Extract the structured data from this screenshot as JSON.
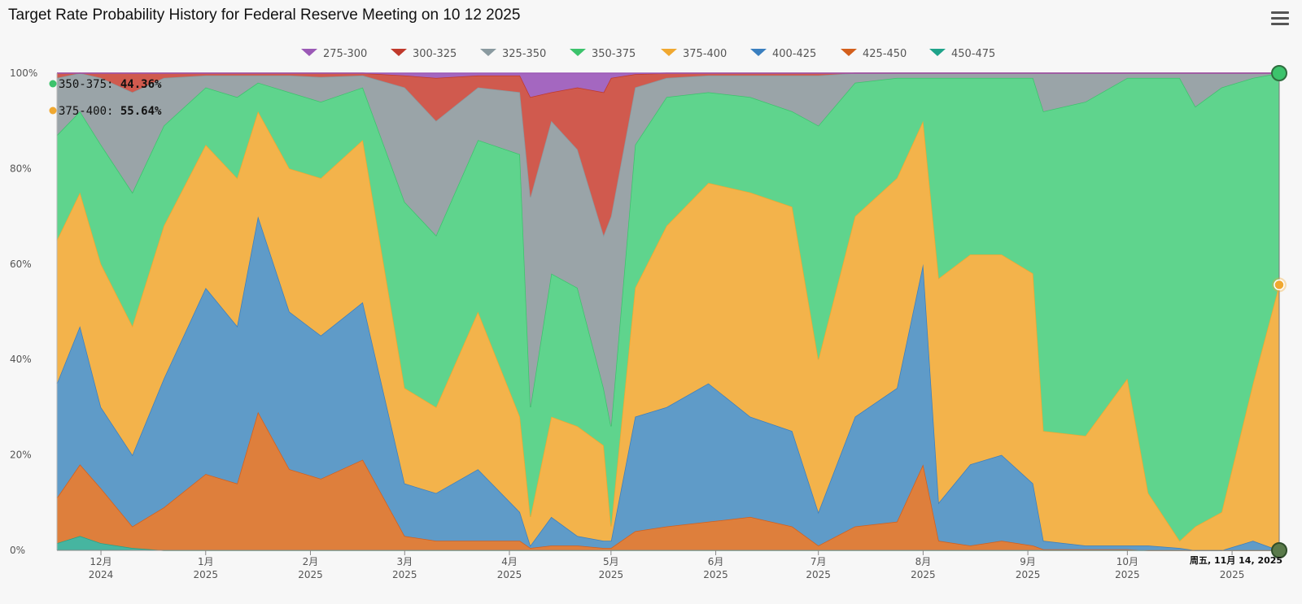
{
  "page": {
    "title": "Target Rate Probability History for Federal Reserve Meeting on 10 12 2025",
    "menu_icon": "hamburger-menu-icon"
  },
  "chart_data": {
    "type": "area",
    "stacked": true,
    "title": "Target Rate Probability History for Federal Reserve Meeting on 10 12 2025",
    "ylim": [
      0,
      100
    ],
    "y_ticks": [
      "0%",
      "20%",
      "40%",
      "60%",
      "80%",
      "100%"
    ],
    "x_ticks": [
      {
        "label": "12月",
        "year": "2024",
        "t": 1.0
      },
      {
        "label": "1月",
        "year": "2025",
        "t": 2.0
      },
      {
        "label": "2月",
        "year": "2025",
        "t": 3.0
      },
      {
        "label": "3月",
        "year": "2025",
        "t": 3.9
      },
      {
        "label": "4月",
        "year": "2025",
        "t": 4.9
      },
      {
        "label": "5月",
        "year": "2025",
        "t": 5.87
      },
      {
        "label": "6月",
        "year": "2025",
        "t": 6.87
      },
      {
        "label": "7月",
        "year": "2025",
        "t": 7.85
      },
      {
        "label": "8月",
        "year": "2025",
        "t": 8.85
      },
      {
        "label": "9月",
        "year": "2025",
        "t": 9.85
      },
      {
        "label": "10月",
        "year": "2025",
        "t": 10.8
      },
      {
        "label": "",
        "year": "2025",
        "t": 11.8
      }
    ],
    "x_range": [
      0.58,
      12.25
    ],
    "last_date_label": "周五, 11月 14, 2025",
    "tooltip": [
      {
        "name": "350-375",
        "value": "44.36%",
        "color": "#3cc36c"
      },
      {
        "name": "375-400",
        "value": "55.64%",
        "color": "#f0a830"
      }
    ],
    "series": [
      {
        "name": "275-300",
        "color": "#9b59b6",
        "fill": "#a467c0"
      },
      {
        "name": "300-325",
        "color": "#c0392b",
        "fill": "#d05a4e"
      },
      {
        "name": "325-350",
        "color": "#8a9aa0",
        "fill": "#9aa4a8"
      },
      {
        "name": "350-375",
        "color": "#3cc36c",
        "fill": "#5fd48d"
      },
      {
        "name": "375-400",
        "color": "#f0a830",
        "fill": "#f3b34b"
      },
      {
        "name": "400-425",
        "color": "#3a7fbf",
        "fill": "#5f9bc8"
      },
      {
        "name": "425-450",
        "color": "#d35f1c",
        "fill": "#de7f3c"
      },
      {
        "name": "450-475",
        "color": "#1fa38a",
        "fill": "#46b5a0"
      }
    ],
    "x": [
      0.58,
      0.8,
      1.0,
      1.3,
      1.6,
      2.0,
      2.3,
      2.5,
      2.8,
      3.1,
      3.5,
      3.9,
      4.2,
      4.6,
      5.0,
      5.1,
      5.3,
      5.55,
      5.8,
      5.87,
      6.1,
      6.4,
      6.8,
      7.2,
      7.6,
      7.85,
      8.2,
      8.6,
      8.85,
      9.0,
      9.3,
      9.6,
      9.9,
      10.0,
      10.4,
      10.8,
      11.0,
      11.3,
      11.45,
      11.7,
      12.0,
      12.25
    ],
    "cumulative_boundaries": {
      "450-475_top": [
        1.5,
        3,
        1.5,
        0.5,
        0,
        0,
        0,
        0,
        0,
        0,
        0,
        0,
        0,
        0,
        0,
        0,
        0,
        0,
        0,
        0,
        0,
        0,
        0,
        0,
        0,
        0,
        0,
        0,
        0,
        0,
        0,
        0,
        0,
        0,
        0,
        0,
        0,
        0,
        0,
        0,
        0,
        0
      ],
      "425-450_top": [
        11,
        18,
        13,
        5,
        9,
        16,
        14,
        29,
        17,
        15,
        19,
        3,
        2,
        2,
        2,
        0.5,
        1,
        1,
        0.5,
        0.5,
        4,
        5,
        6,
        7,
        5,
        1,
        5,
        6,
        18,
        2,
        1,
        2,
        1,
        0.2,
        0.2,
        0.2,
        0,
        0,
        0,
        0,
        0,
        0
      ],
      "400-425_top": [
        35,
        47,
        30,
        20,
        36,
        55,
        47,
        70,
        50,
        45,
        52,
        14,
        12,
        17,
        8,
        1,
        7,
        3,
        2,
        2,
        28,
        30,
        35,
        28,
        25,
        8,
        28,
        34,
        60,
        10,
        18,
        20,
        14,
        2,
        1,
        1,
        1,
        0.5,
        0,
        0,
        2,
        0
      ],
      "375-400_top": [
        65,
        75,
        60,
        47,
        68,
        85,
        78,
        92,
        80,
        78,
        86,
        34,
        30,
        50,
        28,
        7,
        28,
        26,
        22,
        5,
        55,
        68,
        77,
        75,
        72,
        40,
        70,
        78,
        90,
        57,
        62,
        62,
        58,
        25,
        24,
        36,
        12,
        2,
        5,
        8,
        35,
        55.64
      ],
      "350-375_top": [
        87,
        92,
        85,
        75,
        89,
        97,
        95,
        98,
        96,
        94,
        97,
        73,
        66,
        86,
        83,
        30,
        58,
        55,
        34,
        26,
        85,
        95,
        96,
        95,
        92,
        89,
        98,
        99,
        99,
        99,
        99,
        99,
        99,
        92,
        94,
        99,
        99,
        99,
        93,
        97,
        99,
        100
      ],
      "325-350_top": [
        99,
        100,
        99,
        96,
        99,
        99.5,
        99.5,
        99.5,
        99.5,
        99.2,
        99.5,
        97,
        90,
        97,
        96,
        74,
        90,
        84,
        66,
        70,
        97,
        99,
        99.5,
        99.5,
        99.5,
        99.5,
        100,
        100,
        100,
        100,
        100,
        100,
        100,
        100,
        100,
        100,
        100,
        100,
        100,
        100,
        100,
        100
      ],
      "300-325_top": [
        100,
        100,
        100,
        100,
        100,
        100,
        100,
        100,
        100,
        100,
        100,
        99.5,
        99,
        99.5,
        99.5,
        95,
        96,
        97,
        96,
        99,
        99.8,
        100,
        100,
        100,
        100,
        100,
        100,
        100,
        100,
        100,
        100,
        100,
        100,
        100,
        100,
        100,
        100,
        100,
        100,
        100,
        100,
        100
      ],
      "275-300_top": [
        100,
        100,
        100,
        100,
        100,
        100,
        100,
        100,
        100,
        100,
        100,
        100,
        100,
        100,
        100,
        100,
        100,
        100,
        100,
        100,
        100,
        100,
        100,
        100,
        100,
        100,
        100,
        100,
        100,
        100,
        100,
        100,
        100,
        100,
        100,
        100,
        100,
        100,
        100,
        100,
        100,
        100
      ]
    }
  }
}
